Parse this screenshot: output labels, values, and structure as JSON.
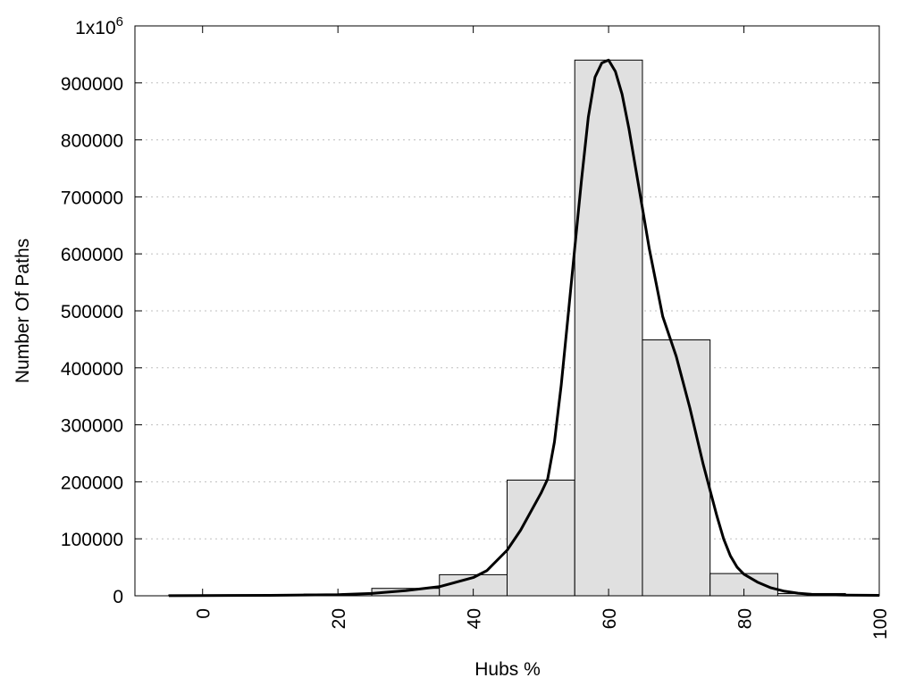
{
  "chart_data": {
    "type": "bar",
    "xlabel": "Hubs %",
    "ylabel": "Number Of Paths",
    "xlim": [
      -10,
      100
    ],
    "ylim": [
      0,
      1000000
    ],
    "x_ticks": [
      "0",
      "20",
      "40",
      "60",
      "80",
      "100"
    ],
    "y_ticks": [
      "0",
      "100000",
      "200000",
      "300000",
      "400000",
      "500000",
      "600000",
      "700000",
      "800000",
      "900000"
    ],
    "y_top_label": {
      "base": "1x10",
      "exponent": "6"
    },
    "grid": "horizontal dotted",
    "bin_width": 10,
    "bars": [
      {
        "x": 0,
        "value": 1500
      },
      {
        "x": 10,
        "value": 1000
      },
      {
        "x": 20,
        "value": 3000
      },
      {
        "x": 30,
        "value": 13000
      },
      {
        "x": 40,
        "value": 37000
      },
      {
        "x": 50,
        "value": 203000
      },
      {
        "x": 60,
        "value": 940000
      },
      {
        "x": 70,
        "value": 449000
      },
      {
        "x": 80,
        "value": 39000
      },
      {
        "x": 90,
        "value": 4000
      }
    ],
    "curve": [
      [
        -5,
        200
      ],
      [
        0,
        400
      ],
      [
        10,
        800
      ],
      [
        20,
        2000
      ],
      [
        25,
        4000
      ],
      [
        30,
        9000
      ],
      [
        35,
        16000
      ],
      [
        40,
        32000
      ],
      [
        42,
        44000
      ],
      [
        45,
        80000
      ],
      [
        47,
        115000
      ],
      [
        50,
        180000
      ],
      [
        51,
        205000
      ],
      [
        52,
        270000
      ],
      [
        53,
        370000
      ],
      [
        54,
        490000
      ],
      [
        55,
        610000
      ],
      [
        56,
        730000
      ],
      [
        57,
        840000
      ],
      [
        58,
        910000
      ],
      [
        59,
        935000
      ],
      [
        60,
        940000
      ],
      [
        61,
        920000
      ],
      [
        62,
        880000
      ],
      [
        63,
        820000
      ],
      [
        64,
        750000
      ],
      [
        65,
        680000
      ],
      [
        66,
        610000
      ],
      [
        67,
        550000
      ],
      [
        68,
        490000
      ],
      [
        70,
        420000
      ],
      [
        72,
        330000
      ],
      [
        74,
        230000
      ],
      [
        75,
        185000
      ],
      [
        76,
        140000
      ],
      [
        77,
        100000
      ],
      [
        78,
        70000
      ],
      [
        79,
        50000
      ],
      [
        80,
        38000
      ],
      [
        82,
        24000
      ],
      [
        84,
        14000
      ],
      [
        86,
        8000
      ],
      [
        88,
        4500
      ],
      [
        90,
        2500
      ],
      [
        95,
        1200
      ],
      [
        100,
        800
      ]
    ],
    "colors": {
      "bar_fill": "#e0e0e0",
      "bar_stroke": "#000000",
      "curve": "#000000",
      "grid": "#bfbfbf"
    }
  }
}
